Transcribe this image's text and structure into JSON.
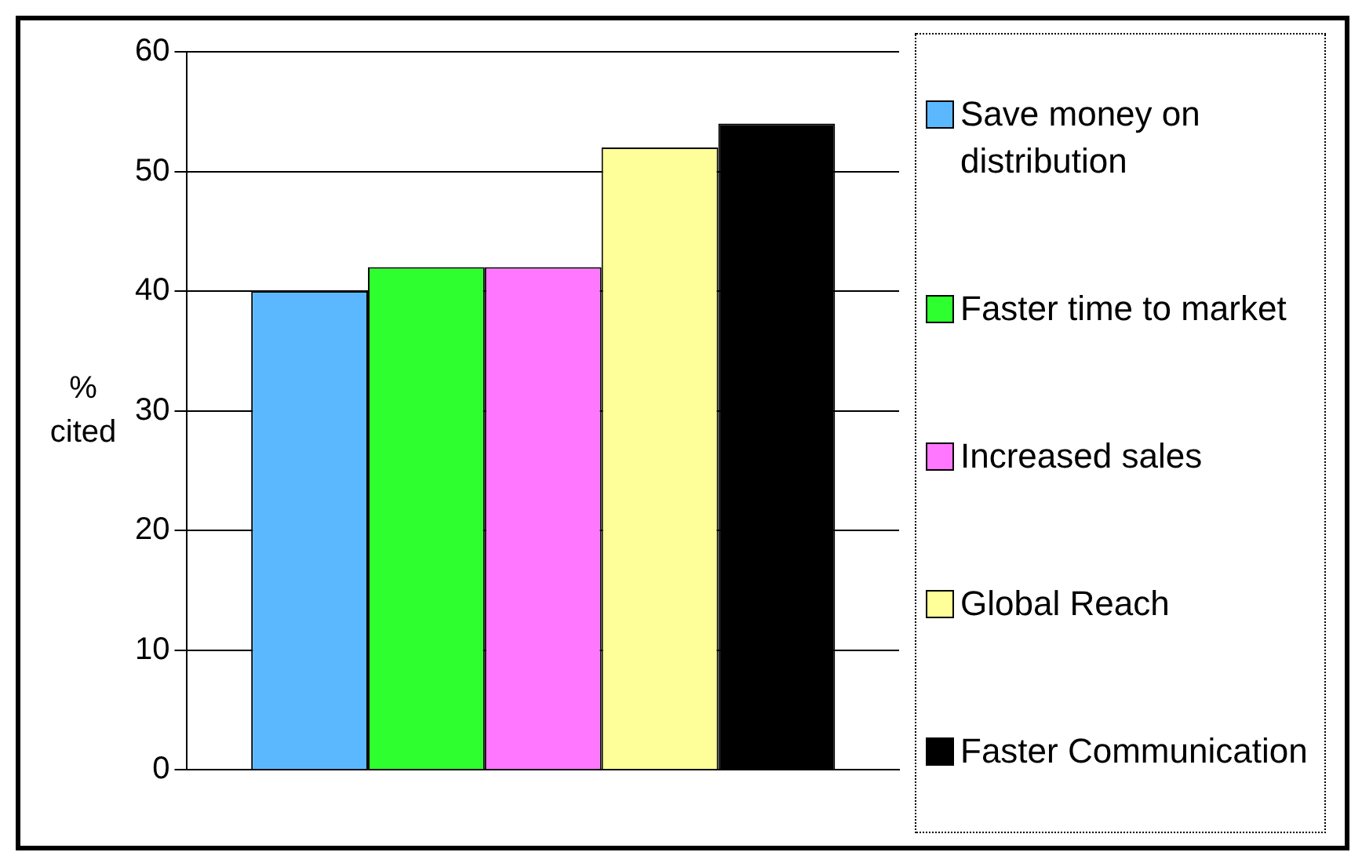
{
  "chart_data": {
    "type": "bar",
    "ylabel": "% cited",
    "categories": [
      null
    ],
    "series": [
      {
        "name": "Save money on distribution",
        "color": "#5bb8ff",
        "values": [
          40
        ]
      },
      {
        "name": "Faster time to market",
        "color": "#2eff2e",
        "values": [
          42
        ]
      },
      {
        "name": "Increased sales",
        "color": "#ff77ff",
        "values": [
          42
        ]
      },
      {
        "name": "Global Reach",
        "color": "#ffff99",
        "values": [
          52
        ]
      },
      {
        "name": "Faster Communication",
        "color": "#000000",
        "values": [
          54
        ]
      }
    ],
    "ylim": [
      0,
      60
    ],
    "yticks": [
      0,
      10,
      20,
      30,
      40,
      50,
      60
    ],
    "grid": "y",
    "legend": "right"
  }
}
